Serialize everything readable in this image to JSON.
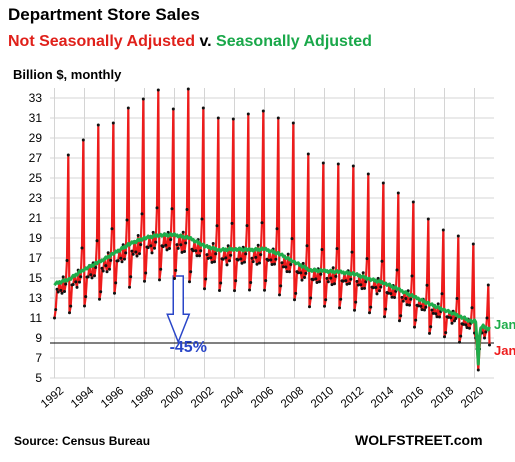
{
  "header": {
    "title": "Department  Store Sales",
    "subtitle_red": "Not Seasonally Adjusted",
    "subtitle_mid": " v. ",
    "subtitle_green": "Seasonally Adjusted",
    "unit_label": "Billion $, monthly"
  },
  "footer": {
    "source": "Source: Census Bureau",
    "brand": "WOLFSTREET.com"
  },
  "colors": {
    "nsa": "#ee1c1c",
    "sa": "#1fad4b",
    "marker": "#111111",
    "annotation": "#2a46c8",
    "grid": "#d4d4d4"
  },
  "chart_data": {
    "type": "line",
    "title": "Department  Store Sales",
    "ylabel": "Billion $, monthly",
    "ylim": [
      5,
      34
    ],
    "xlim": [
      1991.7,
      2021.3
    ],
    "y_ticks": [
      5,
      7,
      9,
      11,
      13,
      15,
      17,
      19,
      21,
      23,
      25,
      27,
      29,
      31,
      33
    ],
    "x_ticks": [
      1992,
      1994,
      1996,
      1998,
      2000,
      2002,
      2004,
      2006,
      2008,
      2010,
      2012,
      2014,
      2016,
      2018,
      2020
    ],
    "grid": true,
    "annual_profile": {
      "years": [
        1992,
        1993,
        1994,
        1995,
        1996,
        1997,
        1998,
        1999,
        2000,
        2001,
        2002,
        2003,
        2004,
        2005,
        2006,
        2007,
        2008,
        2009,
        2010,
        2011,
        2012,
        2013,
        2014,
        2015,
        2016,
        2017,
        2018,
        2019,
        2020
      ],
      "december_peak": [
        27.3,
        28.8,
        30.3,
        30.5,
        32.0,
        32.9,
        33.8,
        31.9,
        33.9,
        32.0,
        31.0,
        30.9,
        31.4,
        31.7,
        31.0,
        30.5,
        27.4,
        26.5,
        26.4,
        26.2,
        25.4,
        24.5,
        23.5,
        22.6,
        20.9,
        19.8,
        19.2,
        18.4,
        14.3
      ],
      "sa_level": [
        14.4,
        14.9,
        15.9,
        16.6,
        17.5,
        18.4,
        19.0,
        19.3,
        19.3,
        19.0,
        18.2,
        17.8,
        17.9,
        17.8,
        17.9,
        17.4,
        16.6,
        15.8,
        15.7,
        15.6,
        15.4,
        14.9,
        14.5,
        13.8,
        13.1,
        12.4,
        11.8,
        11.2,
        10.5
      ]
    },
    "series": [
      {
        "name": "Not Seasonally Adjusted",
        "values": []
      },
      {
        "name": "Seasonally Adjusted",
        "values": []
      }
    ],
    "annotations": [
      {
        "text": "-45%",
        "type": "arrow_down",
        "x": 2000.25,
        "from_y": 15.2,
        "to_y": 8.6
      },
      {
        "text": "",
        "type": "hline",
        "y": 8.5
      },
      {
        "text": "Jan",
        "series": "Seasonally Adjusted",
        "x": 2021.0,
        "y": 10.1
      },
      {
        "text": "Jan",
        "series": "Not Seasonally Adjusted",
        "x": 2021.0,
        "y": 8.3
      }
    ]
  }
}
